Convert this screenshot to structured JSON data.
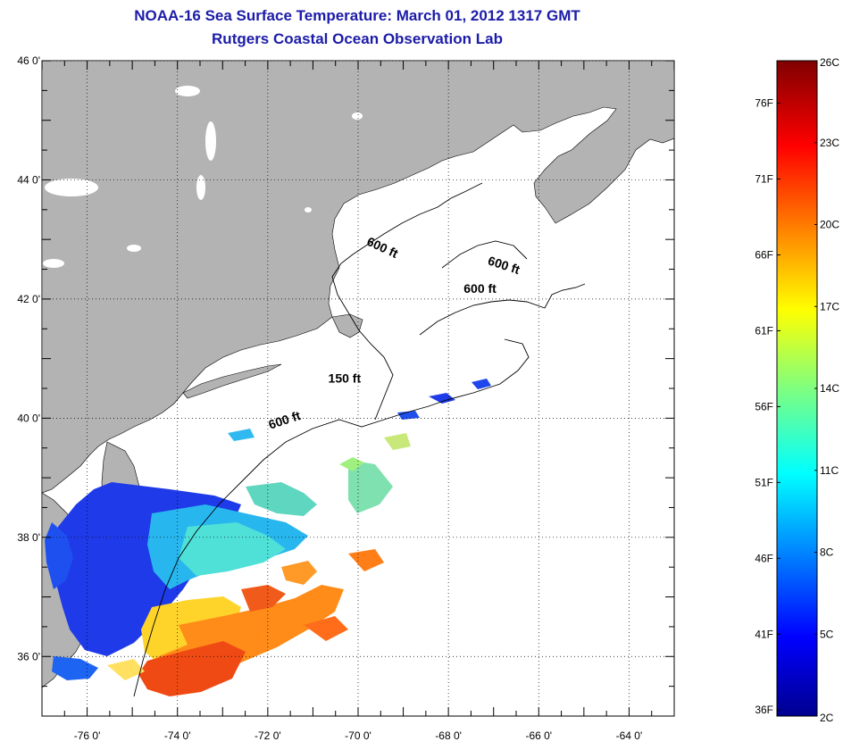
{
  "header": {
    "title": "NOAA-16 Sea Surface Temperature:  March 01, 2012 1317 GMT",
    "subtitle": "Rutgers Coastal Ocean Observation Lab"
  },
  "map": {
    "lon_range": [
      -77,
      -63
    ],
    "lat_range": [
      35,
      46
    ],
    "lon_ticks": [
      {
        "value": -76,
        "label": "-76 0'"
      },
      {
        "value": -74,
        "label": "-74 0'"
      },
      {
        "value": -72,
        "label": "-72 0'"
      },
      {
        "value": -70,
        "label": "-70 0'"
      },
      {
        "value": -68,
        "label": "-68 0'"
      },
      {
        "value": -66,
        "label": "-66 0'"
      },
      {
        "value": -64,
        "label": "-64 0'"
      }
    ],
    "lat_ticks": [
      {
        "value": 46,
        "label": "46 0'"
      },
      {
        "value": 44,
        "label": "44 0'"
      },
      {
        "value": 42,
        "label": "42 0'"
      },
      {
        "value": 40,
        "label": "40 0'"
      },
      {
        "value": 38,
        "label": "38 0'"
      },
      {
        "value": 36,
        "label": "36 0'"
      }
    ],
    "contour_labels": [
      {
        "text": "600 ft",
        "lon": -69.5,
        "lat": 42.8,
        "rot": 25
      },
      {
        "text": "600 ft",
        "lon": -66.8,
        "lat": 42.5,
        "rot": 18
      },
      {
        "text": "600 ft",
        "lon": -67.3,
        "lat": 42.1,
        "rot": 0
      },
      {
        "text": "150 ft",
        "lon": -70.3,
        "lat": 40.6,
        "rot": 0
      },
      {
        "text": "600 ft",
        "lon": -71.6,
        "lat": 39.9,
        "rot": -18
      }
    ],
    "land_color": "#b3b3b3",
    "grid_style": "dotted"
  },
  "colorbar": {
    "min_c": 2,
    "max_c": 26,
    "celsius_labels": [
      "26C",
      "23C",
      "20C",
      "17C",
      "14C",
      "11C",
      "8C",
      "5C",
      "2C"
    ],
    "fahrenheit_labels": [
      "76F",
      "71F",
      "66F",
      "61F",
      "56F",
      "51F",
      "46F",
      "41F",
      "36F"
    ],
    "fahrenheit_values": [
      76,
      71,
      66,
      61,
      56,
      51,
      46,
      41,
      36
    ],
    "celsius_values": [
      26,
      23,
      20,
      17,
      14,
      11,
      8,
      5,
      2
    ]
  }
}
